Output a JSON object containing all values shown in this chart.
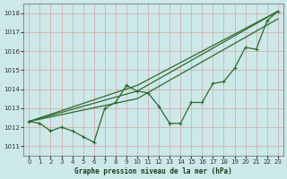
{
  "xlabel": "Graphe pression niveau de la mer (hPa)",
  "bg_color": "#cce8e8",
  "grid_color": "#d4b0b0",
  "line_color": "#2d6a2d",
  "xlim": [
    -0.5,
    23.5
  ],
  "ylim": [
    1010.5,
    1018.5
  ],
  "yticks": [
    1011,
    1012,
    1013,
    1014,
    1015,
    1016,
    1017,
    1018
  ],
  "xticks": [
    0,
    1,
    2,
    3,
    4,
    5,
    6,
    7,
    8,
    9,
    10,
    11,
    12,
    13,
    14,
    15,
    16,
    17,
    18,
    19,
    20,
    21,
    22,
    23
  ],
  "series": [
    {
      "x": [
        0,
        1,
        2,
        3,
        4,
        5,
        6,
        7,
        8,
        9,
        10,
        11,
        12,
        13,
        14,
        15,
        16,
        17,
        18,
        19,
        20,
        21,
        22,
        23
      ],
      "y": [
        1012.3,
        1012.2,
        1011.8,
        1012.0,
        1011.8,
        1011.5,
        1011.2,
        1013.0,
        1013.3,
        1014.2,
        1013.9,
        1013.8,
        1013.1,
        1012.2,
        1012.2,
        1013.3,
        1013.3,
        1014.3,
        1014.4,
        1015.1,
        1016.2,
        1016.1,
        1017.6,
        1018.1
      ],
      "has_markers": true
    },
    {
      "x": [
        0,
        10,
        23
      ],
      "y": [
        1012.3,
        1013.9,
        1018.1
      ],
      "has_markers": false
    },
    {
      "x": [
        0,
        10,
        23
      ],
      "y": [
        1012.3,
        1013.5,
        1017.7
      ],
      "has_markers": false
    },
    {
      "x": [
        0,
        10,
        23
      ],
      "y": [
        1012.3,
        1014.2,
        1018.1
      ],
      "has_markers": false
    }
  ]
}
